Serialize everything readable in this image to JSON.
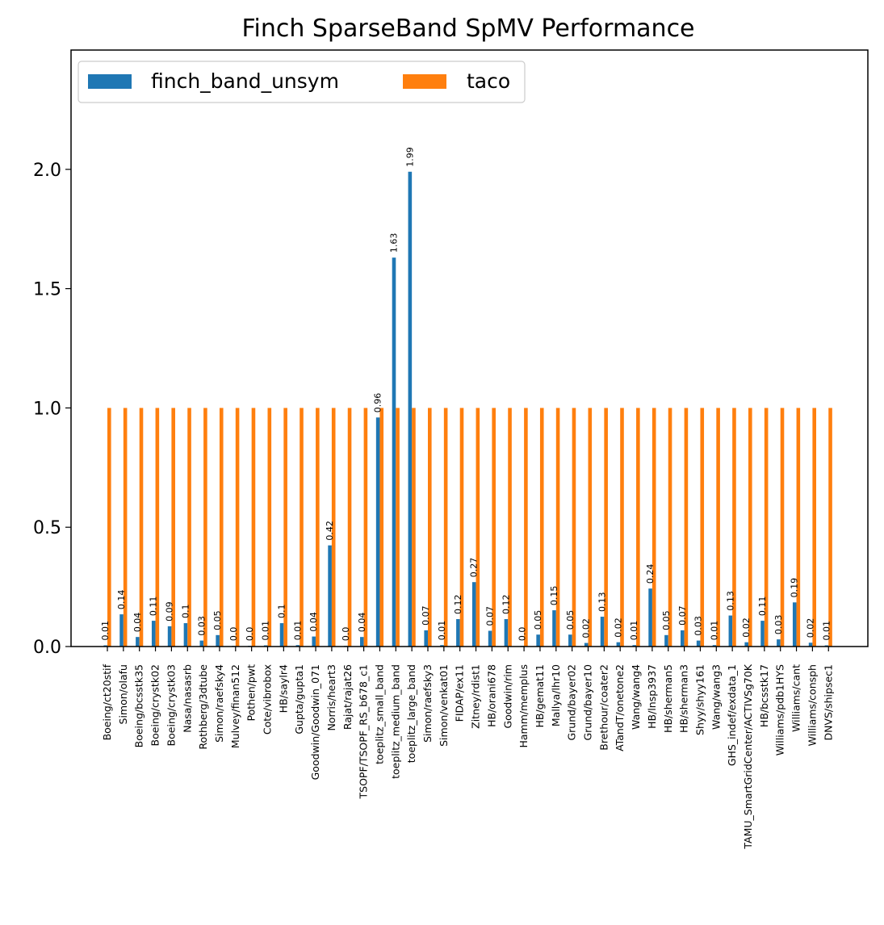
{
  "chart_data": {
    "type": "bar",
    "title": "Finch SparseBand SpMV Performance",
    "xlabel": "",
    "ylabel": "",
    "ylim": [
      0,
      2.5
    ],
    "yticks": [
      0.0,
      0.5,
      1.0,
      1.5,
      2.0
    ],
    "ytick_labels": [
      "0.0",
      "0.5",
      "1.0",
      "1.5",
      "2.0"
    ],
    "legend": {
      "placement": "top-left",
      "columns": 2
    },
    "grid": false,
    "categories": [
      "Boeing/ct20stif",
      "Simon/olafu",
      "Boeing/bcsstk35",
      "Boeing/crystk02",
      "Boeing/crystk03",
      "Nasa/nasasrb",
      "Rothberg/3dtube",
      "Simon/raefsky4",
      "Mulvey/finan512",
      "Pothen/pwt",
      "Cote/vibrobox",
      "HB/saylr4",
      "Gupta/gupta1",
      "Goodwin/Goodwin_071",
      "Norris/heart3",
      "Rajat/rajat26",
      "TSOPF/TSOPF_RS_b678_c1",
      "toeplitz_small_band",
      "toeplitz_medium_band",
      "toeplitz_large_band",
      "Simon/raefsky3",
      "Simon/venkat01",
      "FIDAP/ex11",
      "Zitney/rdist1",
      "HB/orani678",
      "Goodwin/rim",
      "Hamm/memplus",
      "HB/gemat11",
      "Mallya/lhr10",
      "Grund/bayer02",
      "Grund/bayer10",
      "Brethour/coater2",
      "ATandT/onetone2",
      "Wang/wang4",
      "HB/lnsp3937",
      "HB/sherman5",
      "HB/sherman3",
      "Shyy/shyy161",
      "Wang/wang3",
      "GHS_indef/exdata_1",
      "TAMU_SmartGridCenter/ACTIVSg70K",
      "HB/bcsstk17",
      "Williams/pdb1HYS",
      "Williams/cant",
      "Williams/consph",
      "DNVS/shipsec1"
    ],
    "series": [
      {
        "name": "finch_band_unsym",
        "color": "#1f77b4",
        "values": [
          0.005,
          0.135,
          0.04,
          0.108,
          0.085,
          0.098,
          0.025,
          0.048,
          0.003,
          0.003,
          0.005,
          0.098,
          0.006,
          0.042,
          0.424,
          0.003,
          0.04,
          0.96,
          1.63,
          1.99,
          0.068,
          0.006,
          0.115,
          0.27,
          0.066,
          0.115,
          0.003,
          0.05,
          0.152,
          0.05,
          0.015,
          0.125,
          0.018,
          0.006,
          0.243,
          0.048,
          0.068,
          0.025,
          0.006,
          0.13,
          0.018,
          0.108,
          0.03,
          0.185,
          0.016,
          0.005
        ],
        "labels": [
          "0.01",
          "0.14",
          "0.04",
          "0.11",
          "0.09",
          "0.1",
          "0.03",
          "0.05",
          "0.0",
          "0.0",
          "0.01",
          "0.1",
          "0.01",
          "0.04",
          "0.42",
          "0.0",
          "0.04",
          "0.96",
          "1.63",
          "1.99",
          "0.07",
          "0.01",
          "0.12",
          "0.27",
          "0.07",
          "0.12",
          "0.0",
          "0.05",
          "0.15",
          "0.05",
          "0.02",
          "0.13",
          "0.02",
          "0.01",
          "0.24",
          "0.05",
          "0.07",
          "0.03",
          "0.01",
          "0.13",
          "0.02",
          "0.11",
          "0.03",
          "0.19",
          "0.02",
          "0.01"
        ]
      },
      {
        "name": "taco",
        "color": "#ff7f0e",
        "values": [
          1,
          1,
          1,
          1,
          1,
          1,
          1,
          1,
          1,
          1,
          1,
          1,
          1,
          1,
          1,
          1,
          1,
          1,
          1,
          1,
          1,
          1,
          1,
          1,
          1,
          1,
          1,
          1,
          1,
          1,
          1,
          1,
          1,
          1,
          1,
          1,
          1,
          1,
          1,
          1,
          1,
          1,
          1,
          1,
          1,
          1
        ]
      }
    ]
  }
}
